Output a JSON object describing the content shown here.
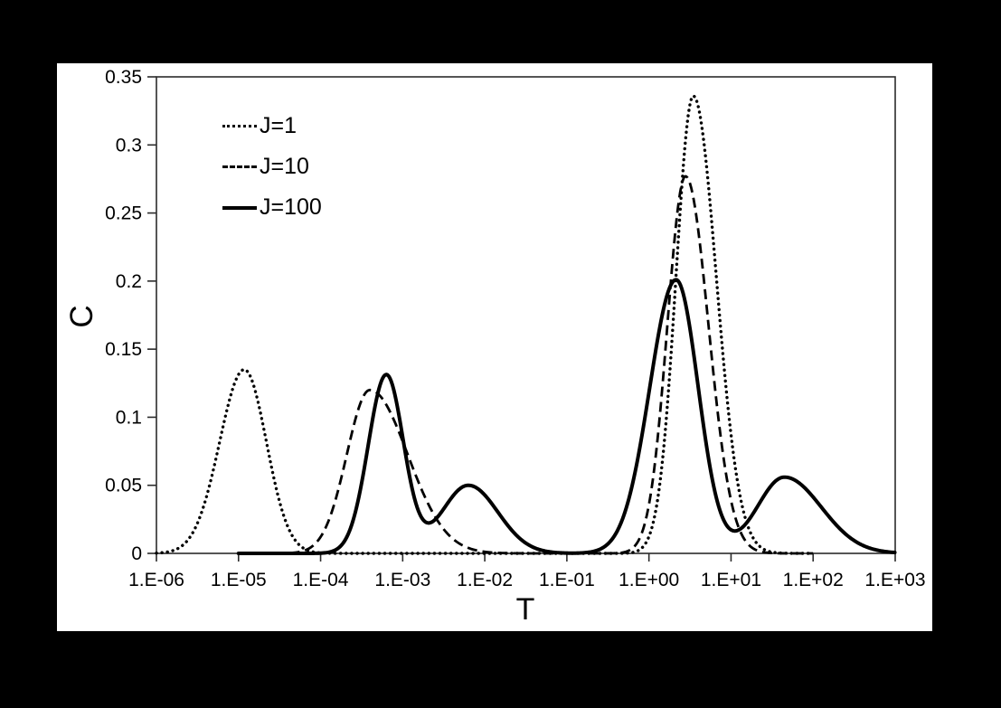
{
  "colors": {
    "canvas_background": "#000000",
    "chart_background": "#ffffff",
    "line": "#000000",
    "axis": "#2b2b2b"
  },
  "axes": {
    "x_title": "T",
    "y_title": "C"
  },
  "legend": {
    "items": [
      {
        "label": "J=1",
        "style": "dotted"
      },
      {
        "label": "J=10",
        "style": "dashed"
      },
      {
        "label": "J=100",
        "style": "solid"
      }
    ]
  },
  "chart_data": {
    "type": "line",
    "title": "",
    "xlabel": "T",
    "ylabel": "C",
    "x_scale": "log10",
    "x_log_range": [
      -6,
      3
    ],
    "x_ticks": [
      "1.E-06",
      "1.E-05",
      "1.E-04",
      "1.E-03",
      "1.E-02",
      "1.E-01",
      "1.E+00",
      "1.E+01",
      "1.E+02",
      "1.E+03"
    ],
    "ylim": [
      0,
      0.35
    ],
    "y_tick_values": [
      0,
      0.05,
      0.1,
      0.15,
      0.2,
      0.25,
      0.3,
      0.35
    ],
    "y_ticks": [
      "0",
      "0.05",
      "0.1",
      "0.15",
      "0.2",
      "0.25",
      "0.3",
      "0.35"
    ],
    "grid": false,
    "legend_position": "top-left-inside",
    "series": [
      {
        "name": "J=1",
        "style": "dotted",
        "domain_log10": [
          -6,
          2
        ],
        "peaks": [
          {
            "T": 1.2e-05,
            "C": 0.135,
            "log10_center": -4.93,
            "sigma_left": 0.3,
            "sigma_right": 0.27
          },
          {
            "T": 3.5,
            "C": 0.336,
            "log10_center": 0.54,
            "sigma_left": 0.21,
            "sigma_right": 0.28
          }
        ]
      },
      {
        "name": "J=10",
        "style": "dashed",
        "domain_log10": [
          -4.75,
          2
        ],
        "peaks": [
          {
            "T": 0.0004,
            "C": 0.12,
            "log10_center": -3.4,
            "sigma_left": 0.28,
            "sigma_right": 0.46
          },
          {
            "T": 2.8,
            "C": 0.277,
            "log10_center": 0.445,
            "sigma_left": 0.22,
            "sigma_right": 0.28
          }
        ]
      },
      {
        "name": "J=100",
        "style": "solid",
        "domain_log10": [
          -5,
          3
        ],
        "peaks": [
          {
            "T": 0.00063,
            "C": 0.131,
            "log10_center": -3.2,
            "sigma_left": 0.22,
            "sigma_right": 0.21
          },
          {
            "T": 0.0063,
            "C": 0.05,
            "log10_center": -2.2,
            "sigma_left": 0.32,
            "sigma_right": 0.36
          },
          {
            "T": 2.15,
            "C": 0.201,
            "log10_center": 0.33,
            "sigma_left": 0.32,
            "sigma_right": 0.27
          },
          {
            "T": 45,
            "C": 0.056,
            "log10_center": 1.65,
            "sigma_left": 0.33,
            "sigma_right": 0.45
          }
        ]
      }
    ]
  }
}
